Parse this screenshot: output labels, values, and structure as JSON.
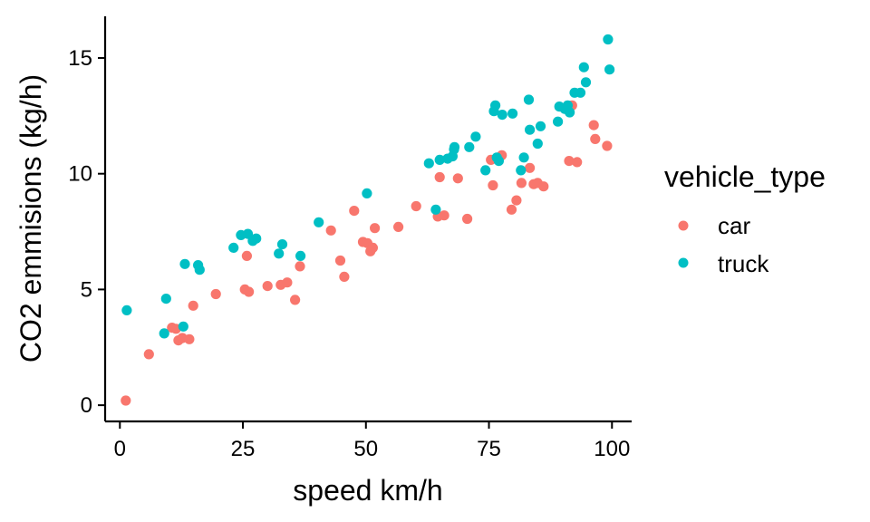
{
  "chart_data": {
    "type": "scatter",
    "title": "",
    "xlabel": "speed km/h",
    "ylabel": "CO2 emmisions (kg/h)",
    "xlim": [
      -3,
      104
    ],
    "ylim": [
      -0.7,
      16.8
    ],
    "xticks": [
      0,
      25,
      50,
      75,
      100
    ],
    "yticks": [
      0,
      5,
      10,
      15
    ],
    "xtick_labels": [
      "0",
      "25",
      "50",
      "75",
      "100"
    ],
    "ytick_labels": [
      "0",
      "5",
      "10",
      "15"
    ],
    "grid": false,
    "legend": {
      "title": "vehicle_type",
      "position": "right"
    },
    "series": [
      {
        "name": "car",
        "color": "#F8766D",
        "points": [
          [
            1.2,
            0.2
          ],
          [
            5.9,
            2.2
          ],
          [
            10.6,
            3.35
          ],
          [
            11.4,
            3.3
          ],
          [
            11.9,
            2.8
          ],
          [
            12.7,
            2.9
          ],
          [
            14.1,
            2.85
          ],
          [
            14.9,
            4.3
          ],
          [
            19.5,
            4.8
          ],
          [
            25.4,
            5.0
          ],
          [
            25.8,
            6.45
          ],
          [
            26.2,
            4.9
          ],
          [
            30.0,
            5.15
          ],
          [
            32.7,
            5.2
          ],
          [
            34.0,
            5.3
          ],
          [
            35.6,
            4.55
          ],
          [
            36.6,
            6.0
          ],
          [
            42.9,
            7.55
          ],
          [
            44.8,
            6.25
          ],
          [
            45.6,
            5.55
          ],
          [
            47.6,
            8.4
          ],
          [
            49.4,
            7.05
          ],
          [
            50.3,
            7.0
          ],
          [
            50.9,
            6.65
          ],
          [
            51.4,
            6.8
          ],
          [
            51.8,
            7.65
          ],
          [
            56.6,
            7.7
          ],
          [
            60.2,
            8.6
          ],
          [
            64.6,
            8.15
          ],
          [
            65.0,
            9.85
          ],
          [
            65.9,
            8.2
          ],
          [
            68.7,
            9.8
          ],
          [
            70.6,
            8.05
          ],
          [
            75.4,
            10.6
          ],
          [
            75.8,
            9.5
          ],
          [
            77.6,
            10.8
          ],
          [
            79.6,
            8.45
          ],
          [
            80.6,
            8.85
          ],
          [
            81.6,
            9.6
          ],
          [
            83.3,
            10.25
          ],
          [
            84.1,
            9.55
          ],
          [
            84.9,
            9.6
          ],
          [
            86.1,
            9.45
          ],
          [
            91.3,
            10.55
          ],
          [
            91.9,
            12.95
          ],
          [
            92.9,
            10.5
          ],
          [
            96.3,
            12.1
          ],
          [
            96.6,
            11.5
          ],
          [
            99.0,
            11.2
          ]
        ]
      },
      {
        "name": "truck",
        "color": "#00BFC4",
        "points": [
          [
            1.4,
            4.1
          ],
          [
            9.0,
            3.1
          ],
          [
            9.4,
            4.6
          ],
          [
            12.9,
            3.4
          ],
          [
            13.2,
            6.1
          ],
          [
            15.9,
            6.05
          ],
          [
            16.2,
            5.85
          ],
          [
            23.1,
            6.8
          ],
          [
            24.6,
            7.35
          ],
          [
            26.0,
            7.4
          ],
          [
            27.0,
            7.1
          ],
          [
            27.7,
            7.2
          ],
          [
            32.3,
            6.55
          ],
          [
            33.0,
            6.95
          ],
          [
            36.7,
            6.45
          ],
          [
            40.4,
            7.9
          ],
          [
            50.2,
            9.15
          ],
          [
            62.8,
            10.45
          ],
          [
            64.2,
            8.45
          ],
          [
            65.0,
            10.6
          ],
          [
            66.6,
            10.65
          ],
          [
            67.6,
            10.75
          ],
          [
            67.9,
            11.05
          ],
          [
            68.0,
            11.15
          ],
          [
            71.0,
            11.15
          ],
          [
            72.3,
            11.6
          ],
          [
            74.3,
            10.15
          ],
          [
            76.0,
            12.7
          ],
          [
            76.3,
            12.95
          ],
          [
            76.6,
            10.7
          ],
          [
            77.0,
            10.55
          ],
          [
            77.7,
            12.55
          ],
          [
            79.8,
            12.6
          ],
          [
            81.5,
            10.15
          ],
          [
            82.1,
            10.7
          ],
          [
            83.1,
            13.2
          ],
          [
            83.3,
            11.9
          ],
          [
            84.9,
            11.3
          ],
          [
            85.5,
            12.05
          ],
          [
            89.0,
            12.25
          ],
          [
            89.3,
            12.9
          ],
          [
            90.4,
            12.8
          ],
          [
            91.0,
            12.95
          ],
          [
            91.4,
            12.65
          ],
          [
            92.4,
            13.5
          ],
          [
            93.6,
            13.5
          ],
          [
            94.3,
            14.6
          ],
          [
            94.7,
            13.95
          ],
          [
            99.2,
            15.8
          ],
          [
            99.5,
            14.5
          ]
        ]
      }
    ]
  }
}
